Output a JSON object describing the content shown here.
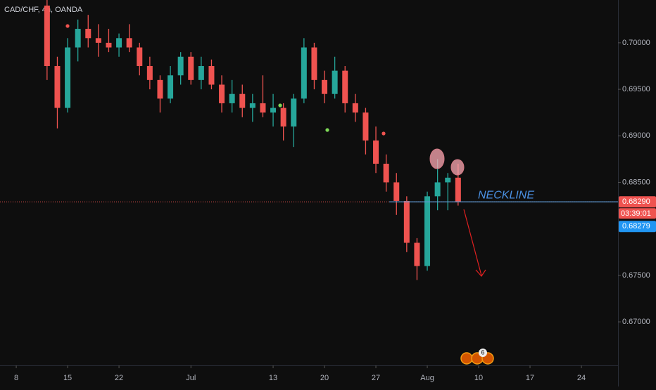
{
  "chart_data": {
    "type": "candlestick",
    "title": "CAD/CHF, 4h, OANDA",
    "x": [
      3,
      4,
      5,
      6,
      7,
      8,
      9,
      10,
      11,
      12,
      13,
      14,
      15,
      16,
      17,
      18,
      19,
      20,
      21,
      22,
      23,
      24,
      25,
      26,
      27,
      28,
      29,
      30,
      31,
      32,
      33,
      34,
      35,
      36,
      37,
      38,
      39,
      40,
      41,
      42,
      43
    ],
    "open": [
      0.704,
      0.6975,
      0.693,
      0.6995,
      0.7015,
      0.7005,
      0.7,
      0.6995,
      0.7005,
      0.6995,
      0.6975,
      0.696,
      0.694,
      0.6965,
      0.6985,
      0.696,
      0.6975,
      0.6955,
      0.6935,
      0.6945,
      0.693,
      0.6935,
      0.6925,
      0.693,
      0.691,
      0.694,
      0.6995,
      0.696,
      0.6945,
      0.697,
      0.6935,
      0.6925,
      0.6895,
      0.687,
      0.685,
      0.683,
      0.6785,
      0.676,
      0.6835,
      0.685,
      0.6855
    ],
    "high": [
      0.7046,
      0.6985,
      0.7005,
      0.7025,
      0.703,
      0.702,
      0.7015,
      0.701,
      0.702,
      0.7,
      0.6985,
      0.6965,
      0.6975,
      0.699,
      0.699,
      0.6985,
      0.6982,
      0.6965,
      0.696,
      0.6955,
      0.6945,
      0.6965,
      0.6945,
      0.6935,
      0.6945,
      0.7005,
      0.7,
      0.697,
      0.6985,
      0.6975,
      0.6945,
      0.693,
      0.691,
      0.688,
      0.686,
      0.6835,
      0.679,
      0.684,
      0.6875,
      0.686,
      0.687
    ],
    "low": [
      0.696,
      0.6908,
      0.6925,
      0.698,
      0.6995,
      0.6985,
      0.699,
      0.6985,
      0.699,
      0.6965,
      0.695,
      0.6925,
      0.6935,
      0.6955,
      0.6955,
      0.695,
      0.695,
      0.6925,
      0.6925,
      0.692,
      0.6915,
      0.692,
      0.691,
      0.6895,
      0.6888,
      0.6935,
      0.695,
      0.6935,
      0.694,
      0.6925,
      0.6915,
      0.688,
      0.686,
      0.684,
      0.6815,
      0.6775,
      0.6745,
      0.6755,
      0.682,
      0.682,
      0.6825
    ],
    "close": [
      0.6975,
      0.693,
      0.6995,
      0.7015,
      0.7005,
      0.7,
      0.6995,
      0.7005,
      0.6995,
      0.6975,
      0.696,
      0.694,
      0.6965,
      0.6985,
      0.696,
      0.6975,
      0.6955,
      0.6935,
      0.6945,
      0.693,
      0.6935,
      0.6925,
      0.693,
      0.691,
      0.694,
      0.6995,
      0.696,
      0.6945,
      0.697,
      0.6935,
      0.6925,
      0.6895,
      0.687,
      0.685,
      0.683,
      0.6785,
      0.676,
      0.6835,
      0.685,
      0.6855,
      0.6829
    ],
    "up_color": "#26a69a",
    "down_color": "#ef5350",
    "xlim": [
      -1.58,
      58.56
    ],
    "ylim": [
      0.66532,
      0.7046
    ],
    "xticks": [
      {
        "value": 0,
        "label": "8"
      },
      {
        "value": 5,
        "label": "15"
      },
      {
        "value": 10,
        "label": "22"
      },
      {
        "value": 17,
        "label": "Jul"
      },
      {
        "value": 25,
        "label": "13"
      },
      {
        "value": 30,
        "label": "20"
      },
      {
        "value": 35,
        "label": "27"
      },
      {
        "value": 40,
        "label": "Aug"
      },
      {
        "value": 45,
        "label": "10"
      },
      {
        "value": 50,
        "label": "17"
      },
      {
        "value": 55,
        "label": "24"
      }
    ],
    "yticks": [
      {
        "value": 0.67,
        "label": "0.67000"
      },
      {
        "value": 0.675,
        "label": "0.67500"
      },
      {
        "value": 0.685,
        "label": "0.68500"
      },
      {
        "value": 0.69,
        "label": "0.69000"
      },
      {
        "value": 0.695,
        "label": "0.69500"
      },
      {
        "value": 0.7,
        "label": "0.70000"
      }
    ],
    "last_price": {
      "value": 0.6829,
      "label": "0.68290"
    },
    "countdown": "03:39:01",
    "bid_price": {
      "value": 0.68279,
      "label": "0.68279"
    },
    "neckline": {
      "text": "NECKLINE",
      "value": 0.6829
    },
    "events_badge": "6"
  }
}
